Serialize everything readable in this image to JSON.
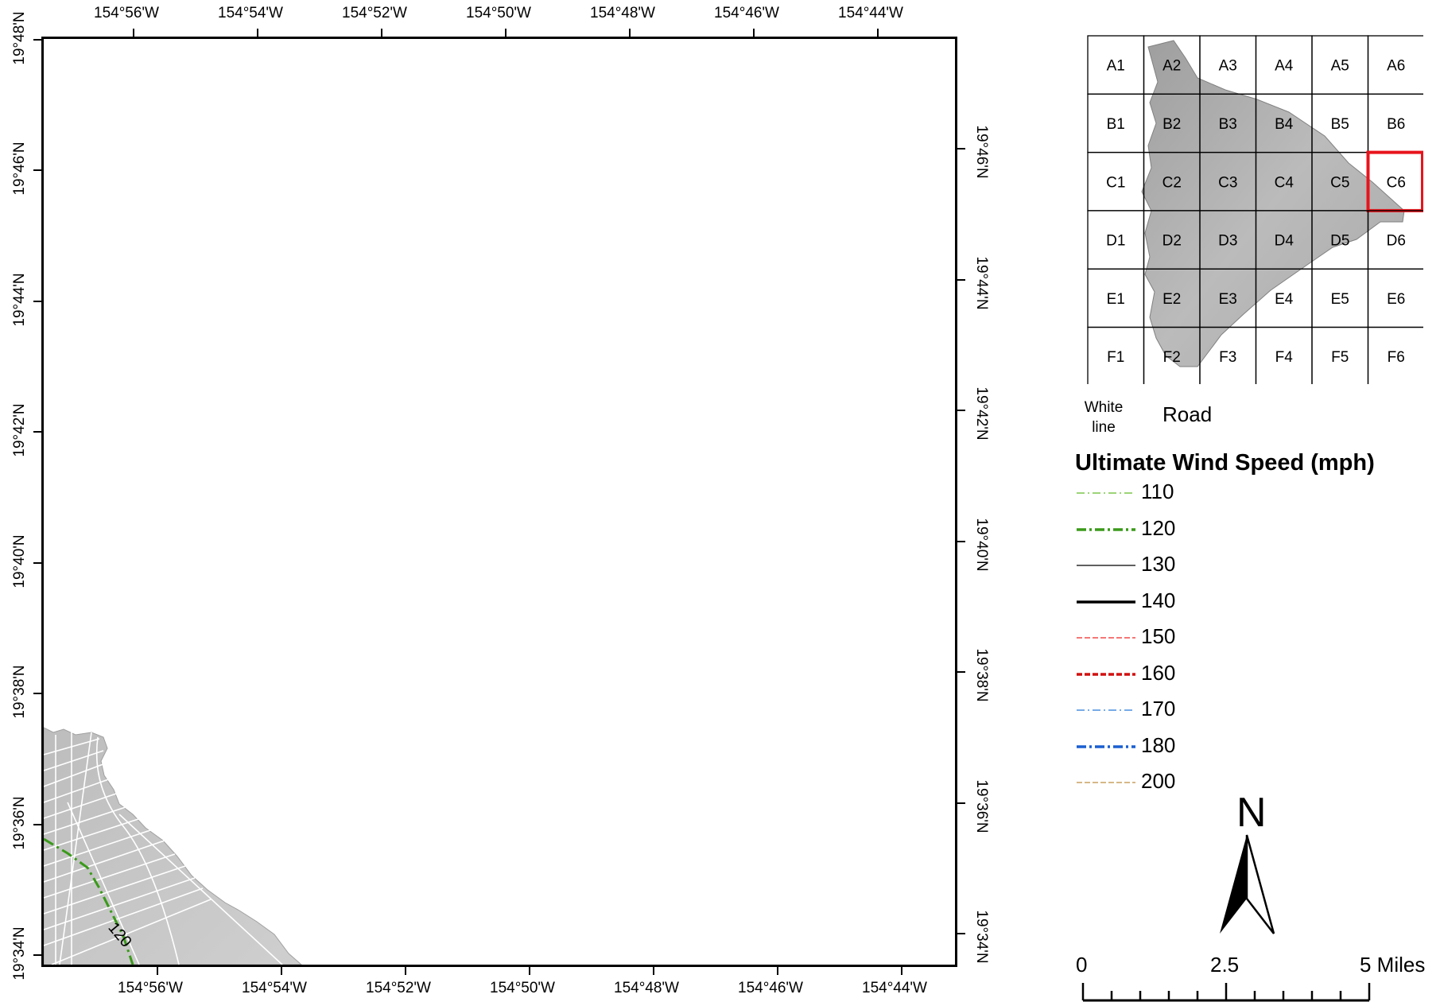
{
  "top_lon_labels": [
    "154°56'W",
    "154°54'W",
    "154°52'W",
    "154°50'W",
    "154°48'W",
    "154°46'W",
    "154°44'W"
  ],
  "bottom_lon_labels": [
    "154°56'W",
    "154°54'W",
    "154°52'W",
    "154°50'W",
    "154°48'W",
    "154°46'W",
    "154°44'W"
  ],
  "left_lat_labels": [
    "19°48'N",
    "19°46'N",
    "19°44'N",
    "19°42'N",
    "19°40'N",
    "19°38'N",
    "19°36'N",
    "19°34'N"
  ],
  "right_lat_labels": [
    "19°46'N",
    "19°44'N",
    "19°42'N",
    "19°40'N",
    "19°38'N",
    "19°36'N",
    "19°34'N"
  ],
  "contour_label": "120",
  "index_grid": {
    "rows": [
      [
        "A1",
        "A2",
        "A3",
        "A4",
        "A5",
        "A6"
      ],
      [
        "B1",
        "B2",
        "B3",
        "B4",
        "B5",
        "B6"
      ],
      [
        "C1",
        "C2",
        "C3",
        "C4",
        "C5",
        "C6"
      ],
      [
        "D1",
        "D2",
        "D3",
        "D4",
        "D5",
        "D6"
      ],
      [
        "E1",
        "E2",
        "E3",
        "E4",
        "E5",
        "E6"
      ],
      [
        "F1",
        "F2",
        "F3",
        "F4",
        "F5",
        "F6"
      ]
    ],
    "highlighted": "C6",
    "highlight_color": "#e8141c"
  },
  "road_key": {
    "swatch_label": "White line",
    "label": "Road"
  },
  "legend": {
    "title": "Ultimate Wind Speed (mph)",
    "items": [
      {
        "label": "110",
        "color": "#7cc64a",
        "style": "dash-dot-thin"
      },
      {
        "label": "120",
        "color": "#3a9a1a",
        "style": "dash-dot-thick"
      },
      {
        "label": "130",
        "color": "#000000",
        "style": "solid-thin"
      },
      {
        "label": "140",
        "color": "#000000",
        "style": "solid-thick"
      },
      {
        "label": "150",
        "color": "#f04a4a",
        "style": "dashed-thin"
      },
      {
        "label": "160",
        "color": "#d11010",
        "style": "dashed-thick"
      },
      {
        "label": "170",
        "color": "#4a8fe0",
        "style": "dash-dot-thin"
      },
      {
        "label": "180",
        "color": "#1a5fd0",
        "style": "dash-dot-thick"
      },
      {
        "label": "200",
        "color": "#c8a060",
        "style": "dashed-thin"
      }
    ]
  },
  "north_arrow": {
    "label": "N"
  },
  "scale_bar": {
    "labels": [
      "0",
      "2.5",
      "5 Miles"
    ]
  }
}
